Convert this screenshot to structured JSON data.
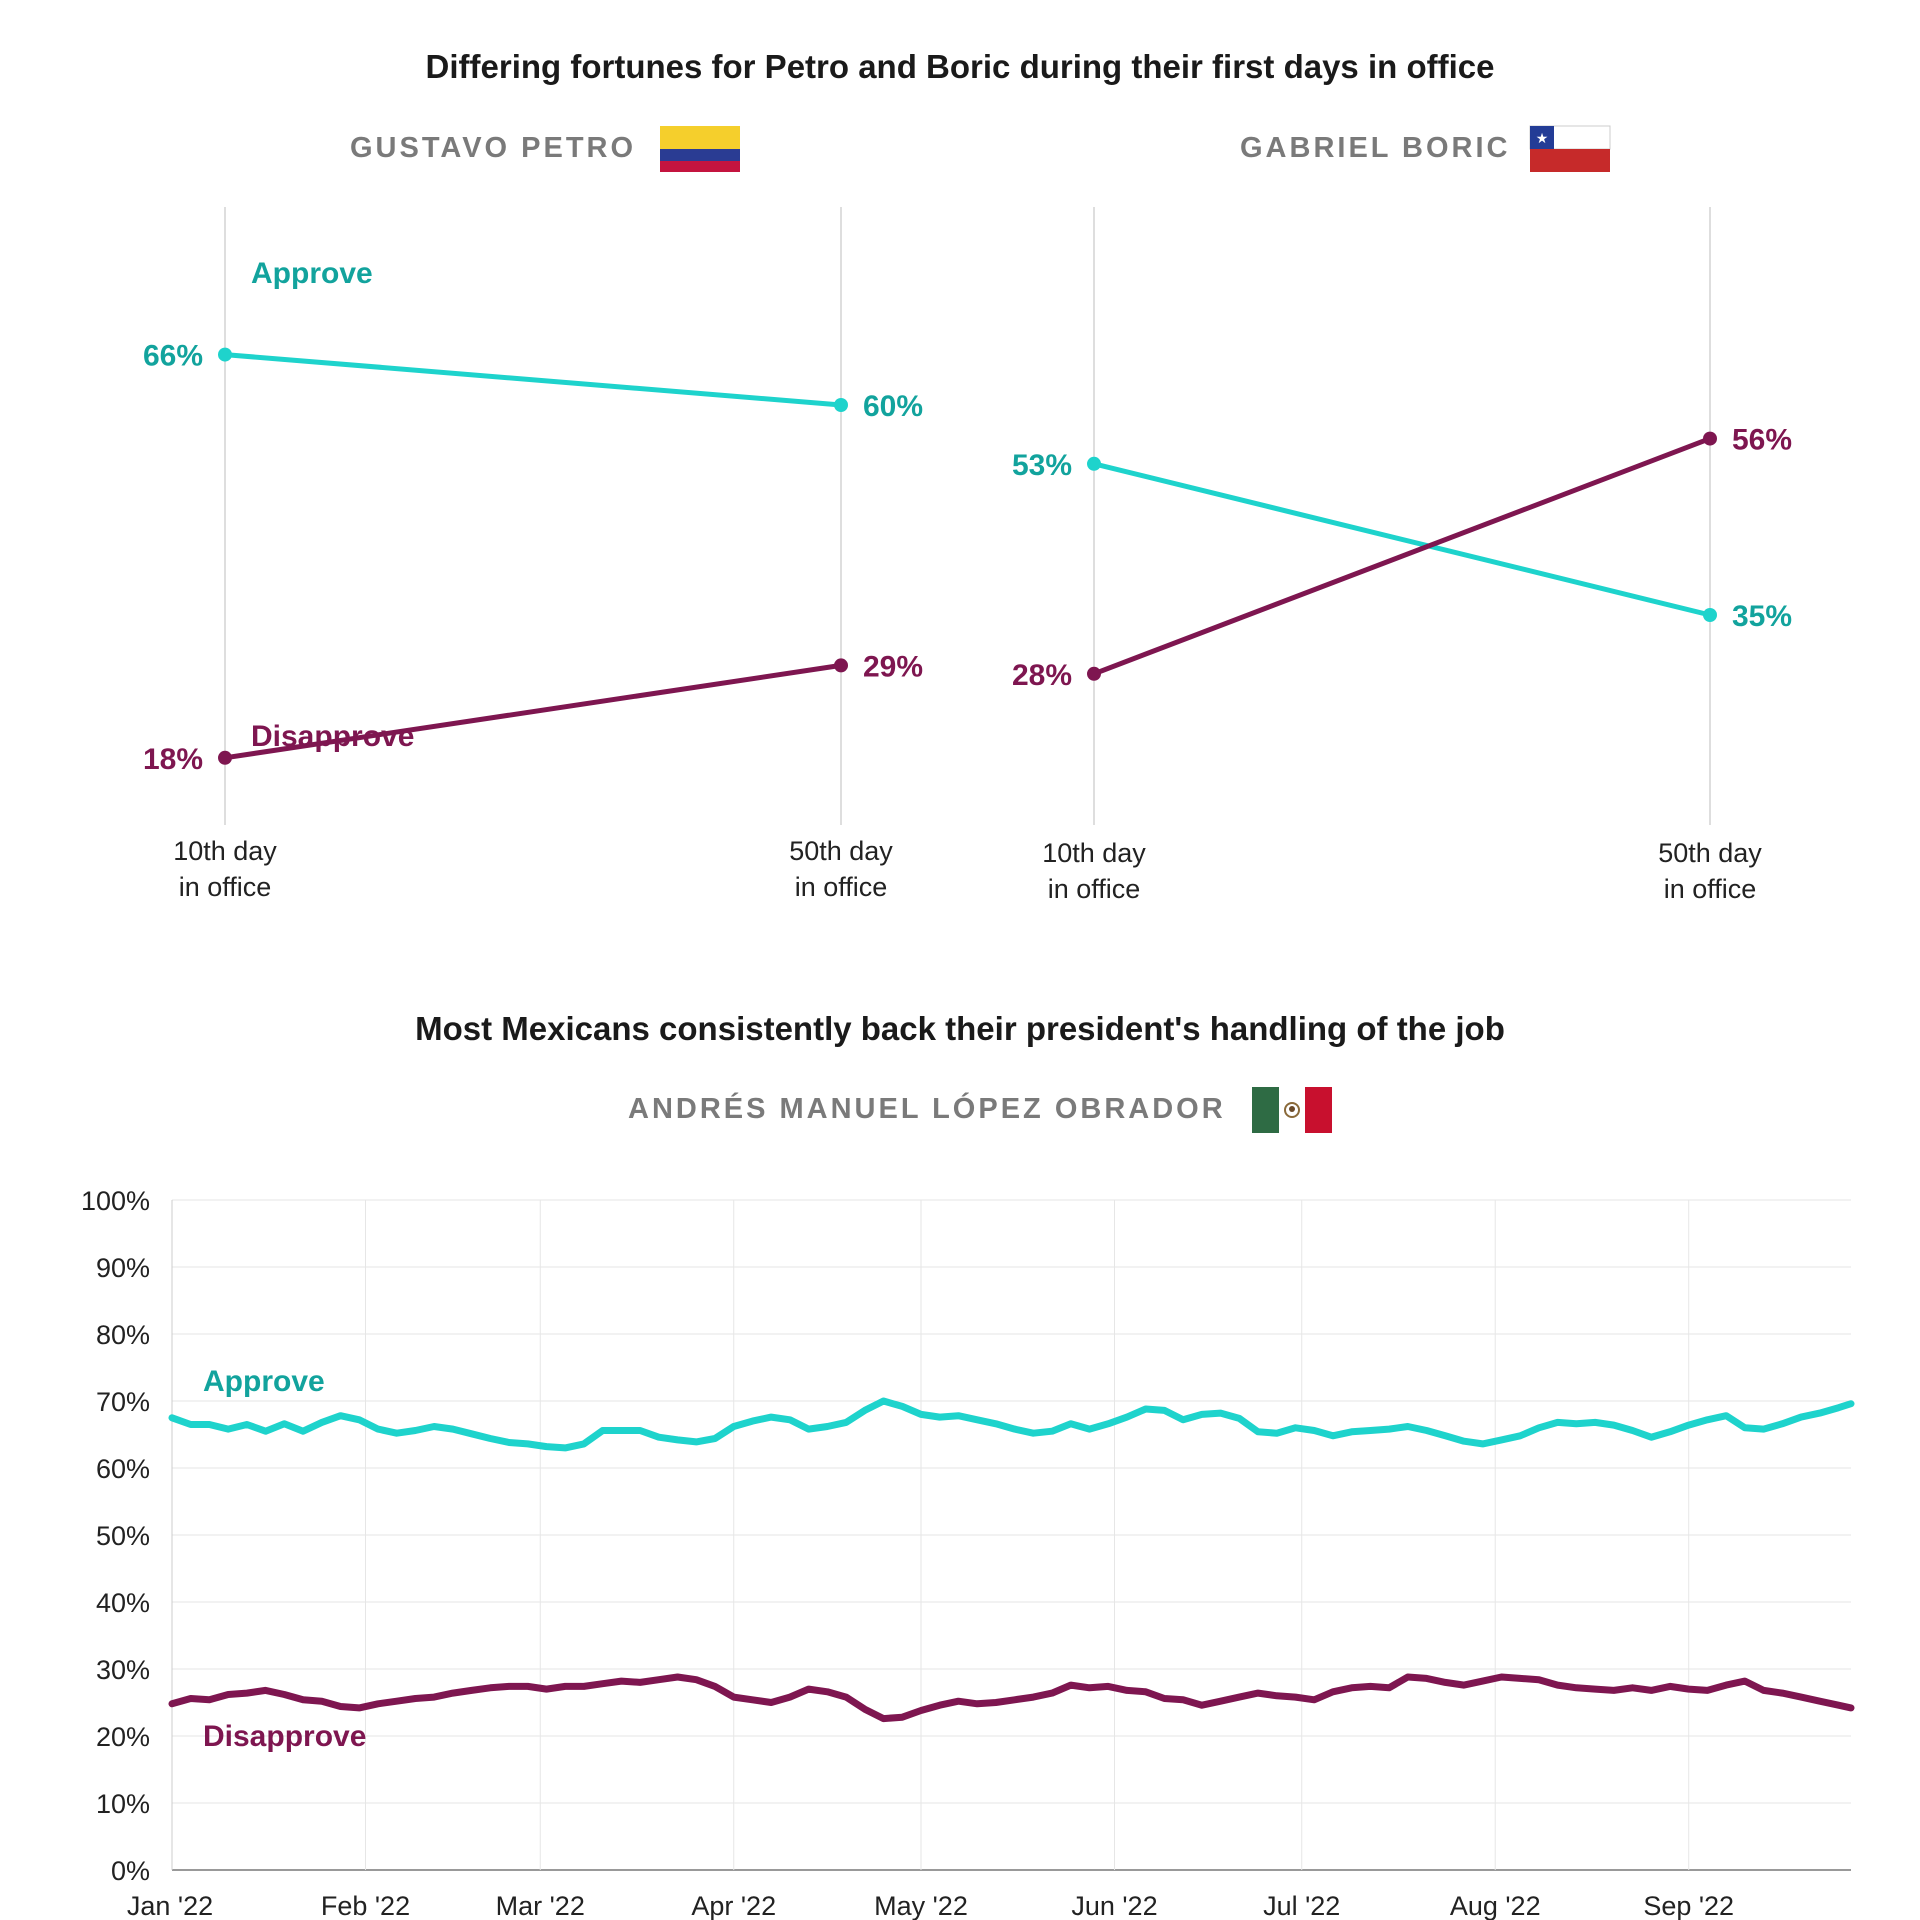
{
  "colors": {
    "approve": "#1ed3cc",
    "approve_text": "#12a39d",
    "disapprove": "#7e1650",
    "grid": "#e6e6e6",
    "axis": "#bbbbbb"
  },
  "top": {
    "title": "Differing fortunes for Petro and Boric during their first days in office",
    "panels": [
      {
        "leader": "GUSTAVO PETRO",
        "flag": "colombia-flag"
      },
      {
        "leader": "GABRIEL BORIC",
        "flag": "chile-flag"
      }
    ]
  },
  "bottom": {
    "title": "Most Mexicans consistently back their president's handling of the job",
    "leader": "ANDRÉS MANUEL LÓPEZ OBRADOR",
    "flag": "mexico-flag"
  },
  "chart_data": [
    {
      "type": "line",
      "leader": "GUSTAVO PETRO",
      "categories": [
        "10th day in office",
        "50th day in office"
      ],
      "category_lines": [
        [
          "10th day",
          "in office"
        ],
        [
          "50th day",
          "in office"
        ]
      ],
      "series": [
        {
          "name": "Approve",
          "values": [
            66,
            60
          ],
          "labels": [
            "66%",
            "60%"
          ]
        },
        {
          "name": "Disapprove",
          "values": [
            18,
            29
          ],
          "labels": [
            "18%",
            "29%"
          ]
        }
      ],
      "ylim": [
        0,
        80
      ]
    },
    {
      "type": "line",
      "leader": "GABRIEL BORIC",
      "categories": [
        "10th day in office",
        "50th day in office"
      ],
      "category_lines": [
        [
          "10th day",
          "in office"
        ],
        [
          "50th day",
          "in office"
        ]
      ],
      "series": [
        {
          "name": "Approve",
          "values": [
            53,
            35
          ],
          "labels": [
            "53%",
            "35%"
          ]
        },
        {
          "name": "Disapprove",
          "values": [
            28,
            56
          ],
          "labels": [
            "28%",
            "56%"
          ]
        }
      ],
      "ylim": [
        0,
        80
      ]
    },
    {
      "type": "line",
      "leader": "ANDRÉS MANUEL LÓPEZ OBRADOR",
      "x_ticks": [
        "Jan '22",
        "Feb '22",
        "Mar '22",
        "Apr '22",
        "May '22",
        "Jun '22",
        "Jul '22",
        "Aug '22",
        "Sep '22"
      ],
      "y_ticks": [
        "0%",
        "10%",
        "20%",
        "30%",
        "40%",
        "50%",
        "60%",
        "70%",
        "80%",
        "90%",
        "100%"
      ],
      "ylim": [
        0,
        100
      ],
      "xlim": [
        "2022-01-01",
        "2022-09-27"
      ],
      "grid": true,
      "series": [
        {
          "name": "Approve",
          "points": [
            [
              "2022-01-01",
              67.5
            ],
            [
              "2022-01-04",
              66.5
            ],
            [
              "2022-01-07",
              66.5
            ],
            [
              "2022-01-10",
              65.8
            ],
            [
              "2022-01-13",
              66.5
            ],
            [
              "2022-01-16",
              65.5
            ],
            [
              "2022-01-19",
              66.6
            ],
            [
              "2022-01-22",
              65.5
            ],
            [
              "2022-01-25",
              66.8
            ],
            [
              "2022-01-28",
              67.8
            ],
            [
              "2022-01-31",
              67.2
            ],
            [
              "2022-02-03",
              65.8
            ],
            [
              "2022-02-06",
              65.2
            ],
            [
              "2022-02-09",
              65.6
            ],
            [
              "2022-02-12",
              66.2
            ],
            [
              "2022-02-15",
              65.8
            ],
            [
              "2022-02-18",
              65.1
            ],
            [
              "2022-02-21",
              64.4
            ],
            [
              "2022-02-24",
              63.8
            ],
            [
              "2022-02-27",
              63.6
            ],
            [
              "2022-03-02",
              63.2
            ],
            [
              "2022-03-05",
              63.0
            ],
            [
              "2022-03-08",
              63.6
            ],
            [
              "2022-03-11",
              65.6
            ],
            [
              "2022-03-14",
              65.6
            ],
            [
              "2022-03-17",
              65.6
            ],
            [
              "2022-03-20",
              64.6
            ],
            [
              "2022-03-23",
              64.2
            ],
            [
              "2022-03-26",
              63.9
            ],
            [
              "2022-03-29",
              64.4
            ],
            [
              "2022-04-01",
              66.2
            ],
            [
              "2022-04-04",
              67.0
            ],
            [
              "2022-04-07",
              67.6
            ],
            [
              "2022-04-10",
              67.2
            ],
            [
              "2022-04-13",
              65.8
            ],
            [
              "2022-04-16",
              66.2
            ],
            [
              "2022-04-19",
              66.8
            ],
            [
              "2022-04-22",
              68.6
            ],
            [
              "2022-04-25",
              70.0
            ],
            [
              "2022-04-28",
              69.2
            ],
            [
              "2022-05-01",
              68.0
            ],
            [
              "2022-05-04",
              67.6
            ],
            [
              "2022-05-07",
              67.8
            ],
            [
              "2022-05-10",
              67.2
            ],
            [
              "2022-05-13",
              66.6
            ],
            [
              "2022-05-16",
              65.8
            ],
            [
              "2022-05-19",
              65.2
            ],
            [
              "2022-05-22",
              65.5
            ],
            [
              "2022-05-25",
              66.6
            ],
            [
              "2022-05-28",
              65.8
            ],
            [
              "2022-05-31",
              66.6
            ],
            [
              "2022-06-03",
              67.6
            ],
            [
              "2022-06-06",
              68.8
            ],
            [
              "2022-06-09",
              68.6
            ],
            [
              "2022-06-12",
              67.2
            ],
            [
              "2022-06-15",
              68.0
            ],
            [
              "2022-06-18",
              68.2
            ],
            [
              "2022-06-21",
              67.4
            ],
            [
              "2022-06-24",
              65.4
            ],
            [
              "2022-06-27",
              65.2
            ],
            [
              "2022-06-30",
              66.0
            ],
            [
              "2022-07-03",
              65.6
            ],
            [
              "2022-07-06",
              64.8
            ],
            [
              "2022-07-09",
              65.4
            ],
            [
              "2022-07-12",
              65.6
            ],
            [
              "2022-07-15",
              65.8
            ],
            [
              "2022-07-18",
              66.2
            ],
            [
              "2022-07-21",
              65.6
            ],
            [
              "2022-07-24",
              64.8
            ],
            [
              "2022-07-27",
              64.0
            ],
            [
              "2022-07-30",
              63.6
            ],
            [
              "2022-08-02",
              64.2
            ],
            [
              "2022-08-05",
              64.8
            ],
            [
              "2022-08-08",
              66.0
            ],
            [
              "2022-08-11",
              66.8
            ],
            [
              "2022-08-14",
              66.6
            ],
            [
              "2022-08-17",
              66.8
            ],
            [
              "2022-08-20",
              66.4
            ],
            [
              "2022-08-23",
              65.6
            ],
            [
              "2022-08-26",
              64.6
            ],
            [
              "2022-08-29",
              65.4
            ],
            [
              "2022-09-01",
              66.4
            ],
            [
              "2022-09-04",
              67.2
            ],
            [
              "2022-09-07",
              67.8
            ],
            [
              "2022-09-10",
              66.0
            ],
            [
              "2022-09-13",
              65.8
            ],
            [
              "2022-09-16",
              66.6
            ],
            [
              "2022-09-19",
              67.6
            ],
            [
              "2022-09-22",
              68.2
            ],
            [
              "2022-09-25",
              69.0
            ],
            [
              "2022-09-27",
              69.6
            ]
          ]
        },
        {
          "name": "Disapprove",
          "points": [
            [
              "2022-01-01",
              24.8
            ],
            [
              "2022-01-04",
              25.6
            ],
            [
              "2022-01-07",
              25.4
            ],
            [
              "2022-01-10",
              26.2
            ],
            [
              "2022-01-13",
              26.4
            ],
            [
              "2022-01-16",
              26.8
            ],
            [
              "2022-01-19",
              26.2
            ],
            [
              "2022-01-22",
              25.4
            ],
            [
              "2022-01-25",
              25.2
            ],
            [
              "2022-01-28",
              24.4
            ],
            [
              "2022-01-31",
              24.2
            ],
            [
              "2022-02-03",
              24.8
            ],
            [
              "2022-02-06",
              25.2
            ],
            [
              "2022-02-09",
              25.6
            ],
            [
              "2022-02-12",
              25.8
            ],
            [
              "2022-02-15",
              26.4
            ],
            [
              "2022-02-18",
              26.8
            ],
            [
              "2022-02-21",
              27.2
            ],
            [
              "2022-02-24",
              27.4
            ],
            [
              "2022-02-27",
              27.4
            ],
            [
              "2022-03-02",
              27.0
            ],
            [
              "2022-03-05",
              27.4
            ],
            [
              "2022-03-08",
              27.4
            ],
            [
              "2022-03-11",
              27.8
            ],
            [
              "2022-03-14",
              28.2
            ],
            [
              "2022-03-17",
              28.0
            ],
            [
              "2022-03-20",
              28.4
            ],
            [
              "2022-03-23",
              28.8
            ],
            [
              "2022-03-26",
              28.4
            ],
            [
              "2022-03-29",
              27.4
            ],
            [
              "2022-04-01",
              25.8
            ],
            [
              "2022-04-04",
              25.4
            ],
            [
              "2022-04-07",
              25.0
            ],
            [
              "2022-04-10",
              25.8
            ],
            [
              "2022-04-13",
              27.0
            ],
            [
              "2022-04-16",
              26.6
            ],
            [
              "2022-04-19",
              25.8
            ],
            [
              "2022-04-22",
              24.0
            ],
            [
              "2022-04-25",
              22.6
            ],
            [
              "2022-04-28",
              22.8
            ],
            [
              "2022-05-01",
              23.8
            ],
            [
              "2022-05-04",
              24.6
            ],
            [
              "2022-05-07",
              25.2
            ],
            [
              "2022-05-10",
              24.8
            ],
            [
              "2022-05-13",
              25.0
            ],
            [
              "2022-05-16",
              25.4
            ],
            [
              "2022-05-19",
              25.8
            ],
            [
              "2022-05-22",
              26.4
            ],
            [
              "2022-05-25",
              27.6
            ],
            [
              "2022-05-28",
              27.2
            ],
            [
              "2022-05-31",
              27.4
            ],
            [
              "2022-06-03",
              26.8
            ],
            [
              "2022-06-06",
              26.6
            ],
            [
              "2022-06-09",
              25.6
            ],
            [
              "2022-06-12",
              25.4
            ],
            [
              "2022-06-15",
              24.6
            ],
            [
              "2022-06-18",
              25.2
            ],
            [
              "2022-06-21",
              25.8
            ],
            [
              "2022-06-24",
              26.4
            ],
            [
              "2022-06-27",
              26.0
            ],
            [
              "2022-06-30",
              25.8
            ],
            [
              "2022-07-03",
              25.4
            ],
            [
              "2022-07-06",
              26.6
            ],
            [
              "2022-07-09",
              27.2
            ],
            [
              "2022-07-12",
              27.4
            ],
            [
              "2022-07-15",
              27.2
            ],
            [
              "2022-07-18",
              28.8
            ],
            [
              "2022-07-21",
              28.6
            ],
            [
              "2022-07-24",
              28.0
            ],
            [
              "2022-07-27",
              27.6
            ],
            [
              "2022-07-30",
              28.2
            ],
            [
              "2022-08-02",
              28.8
            ],
            [
              "2022-08-05",
              28.6
            ],
            [
              "2022-08-08",
              28.4
            ],
            [
              "2022-08-11",
              27.6
            ],
            [
              "2022-08-14",
              27.2
            ],
            [
              "2022-08-17",
              27.0
            ],
            [
              "2022-08-20",
              26.8
            ],
            [
              "2022-08-23",
              27.2
            ],
            [
              "2022-08-26",
              26.8
            ],
            [
              "2022-08-29",
              27.4
            ],
            [
              "2022-09-01",
              27.0
            ],
            [
              "2022-09-04",
              26.8
            ],
            [
              "2022-09-07",
              27.6
            ],
            [
              "2022-09-10",
              28.2
            ],
            [
              "2022-09-13",
              26.8
            ],
            [
              "2022-09-16",
              26.4
            ],
            [
              "2022-09-19",
              25.8
            ],
            [
              "2022-09-22",
              25.2
            ],
            [
              "2022-09-25",
              24.6
            ],
            [
              "2022-09-27",
              24.2
            ]
          ]
        }
      ]
    }
  ]
}
